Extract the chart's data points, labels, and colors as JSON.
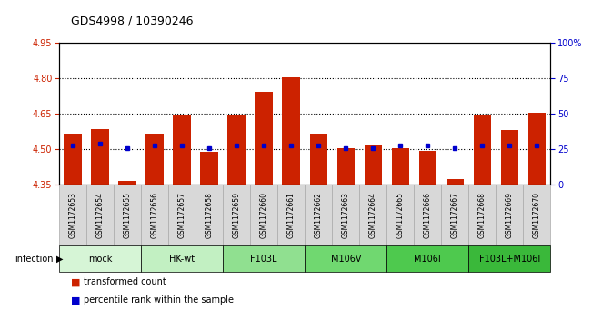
{
  "title": "GDS4998 / 10390246",
  "samples": [
    "GSM1172653",
    "GSM1172654",
    "GSM1172655",
    "GSM1172656",
    "GSM1172657",
    "GSM1172658",
    "GSM1172659",
    "GSM1172660",
    "GSM1172661",
    "GSM1172662",
    "GSM1172663",
    "GSM1172664",
    "GSM1172665",
    "GSM1172666",
    "GSM1172667",
    "GSM1172668",
    "GSM1172669",
    "GSM1172670"
  ],
  "bar_values": [
    4.565,
    4.585,
    4.365,
    4.565,
    4.645,
    4.49,
    4.645,
    4.745,
    4.805,
    4.565,
    4.505,
    4.515,
    4.505,
    4.495,
    4.375,
    4.645,
    4.58,
    4.655
  ],
  "percentile_values": [
    4.515,
    4.525,
    4.505,
    4.515,
    4.515,
    4.505,
    4.515,
    4.515,
    4.515,
    4.515,
    4.505,
    4.505,
    4.515,
    4.515,
    4.505,
    4.515,
    4.515,
    4.515
  ],
  "bar_bottom": 4.35,
  "ylim": [
    4.35,
    4.95
  ],
  "y_ticks_left": [
    4.35,
    4.5,
    4.65,
    4.8,
    4.95
  ],
  "y_ticks_right": [
    0,
    25,
    50,
    75,
    100
  ],
  "y_right_labels": [
    "0",
    "25",
    "50",
    "75",
    "100%"
  ],
  "dotted_lines": [
    4.5,
    4.65,
    4.8
  ],
  "groups": [
    {
      "label": "mock",
      "start": 0,
      "end": 2,
      "color": "#d6f5d6"
    },
    {
      "label": "HK-wt",
      "start": 3,
      "end": 5,
      "color": "#c2f0c2"
    },
    {
      "label": "F103L",
      "start": 6,
      "end": 8,
      "color": "#90e090"
    },
    {
      "label": "M106V",
      "start": 9,
      "end": 11,
      "color": "#70d870"
    },
    {
      "label": "M106I",
      "start": 12,
      "end": 14,
      "color": "#4ec94e"
    },
    {
      "label": "F103L+M106I",
      "start": 15,
      "end": 17,
      "color": "#3ab83a"
    }
  ],
  "bar_color": "#cc2200",
  "dot_color": "#0000cc",
  "bar_width": 0.65,
  "xlabel_infection": "infection",
  "legend_bar_label": "transformed count",
  "legend_dot_label": "percentile rank within the sample",
  "tick_color_left": "#cc2200",
  "tick_color_right": "#0000cc",
  "cell_gray": "#d8d8d8",
  "cell_gray_border": "#aaaaaa"
}
